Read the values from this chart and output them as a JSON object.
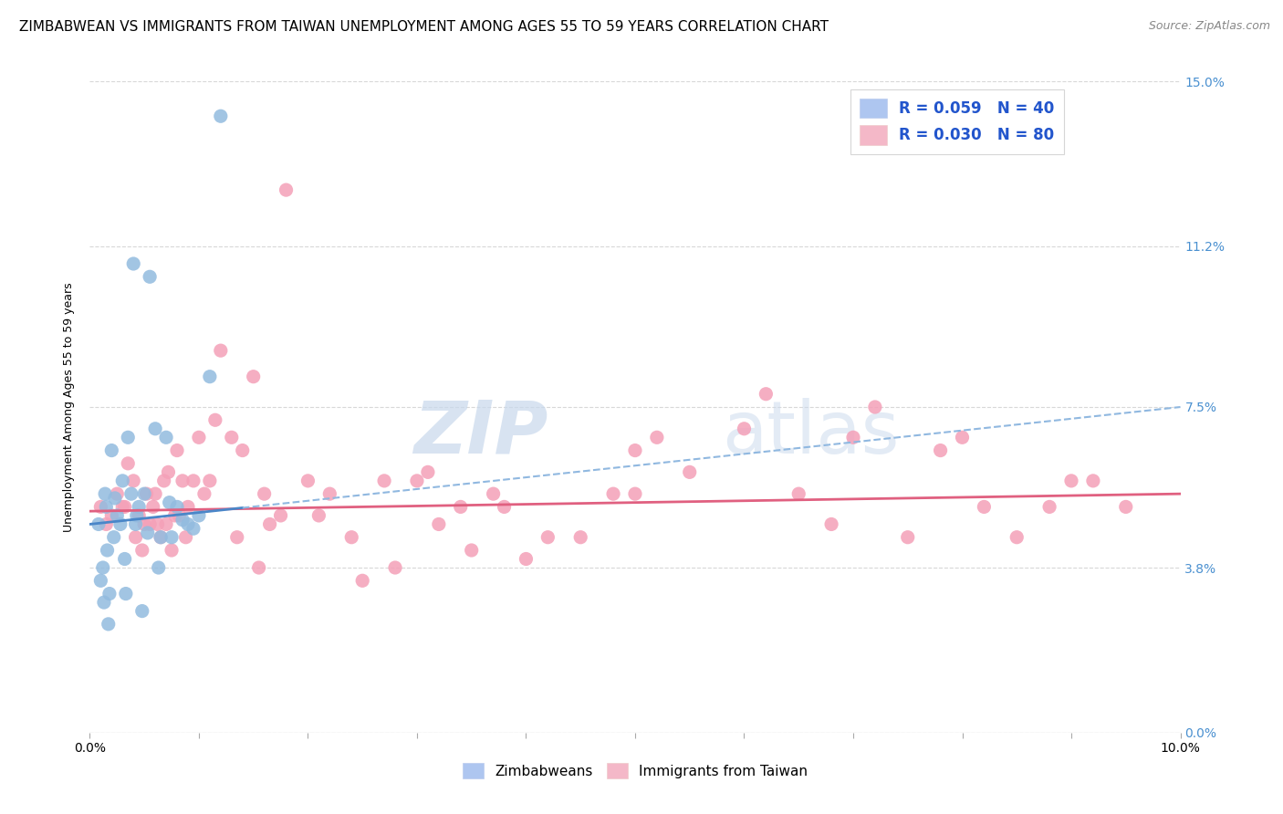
{
  "title": "ZIMBABWEAN VS IMMIGRANTS FROM TAIWAN UNEMPLOYMENT AMONG AGES 55 TO 59 YEARS CORRELATION CHART",
  "source": "Source: ZipAtlas.com",
  "ylabel": "Unemployment Among Ages 55 to 59 years",
  "ytick_labels": [
    "0.0%",
    "3.8%",
    "7.5%",
    "11.2%",
    "15.0%"
  ],
  "ytick_values": [
    0.0,
    3.8,
    7.5,
    11.2,
    15.0
  ],
  "xlim": [
    0.0,
    10.0
  ],
  "ylim": [
    0.0,
    15.0
  ],
  "legend_entries": [
    {
      "label_r": "R = 0.059",
      "label_n": "N = 40",
      "color": "#aec6f0"
    },
    {
      "label_r": "R = 0.030",
      "label_n": "N = 80",
      "color": "#f4b8c8"
    }
  ],
  "legend_labels_bottom": [
    "Zimbabweans",
    "Immigrants from Taiwan"
  ],
  "blue_color": "#92bbdf",
  "pink_color": "#f4a0b8",
  "blue_line_color": "#4a86c8",
  "blue_line_dash_color": "#90b8e0",
  "pink_line_color": "#e06080",
  "watermark_zip": "ZIP",
  "watermark_atlas": "atlas",
  "title_fontsize": 11,
  "source_fontsize": 9,
  "axis_label_fontsize": 9,
  "tick_fontsize": 10,
  "blue_scatter_x": [
    0.08,
    0.1,
    0.12,
    0.14,
    0.15,
    0.16,
    0.18,
    0.2,
    0.22,
    0.25,
    0.28,
    0.3,
    0.32,
    0.35,
    0.38,
    0.4,
    0.42,
    0.45,
    0.48,
    0.5,
    0.55,
    0.6,
    0.65,
    0.7,
    0.75,
    0.8,
    0.9,
    1.0,
    1.1,
    1.2,
    0.13,
    0.17,
    0.23,
    0.33,
    0.43,
    0.53,
    0.63,
    0.73,
    0.85,
    0.95
  ],
  "blue_scatter_y": [
    4.8,
    3.5,
    3.8,
    5.5,
    5.2,
    4.2,
    3.2,
    6.5,
    4.5,
    5.0,
    4.8,
    5.8,
    4.0,
    6.8,
    5.5,
    10.8,
    4.8,
    5.2,
    2.8,
    5.5,
    10.5,
    7.0,
    4.5,
    6.8,
    4.5,
    5.2,
    4.8,
    5.0,
    8.2,
    14.2,
    3.0,
    2.5,
    5.4,
    3.2,
    5.0,
    4.6,
    3.8,
    5.3,
    4.9,
    4.7
  ],
  "pink_scatter_x": [
    0.1,
    0.15,
    0.2,
    0.25,
    0.3,
    0.35,
    0.4,
    0.42,
    0.45,
    0.48,
    0.5,
    0.52,
    0.55,
    0.58,
    0.6,
    0.65,
    0.68,
    0.7,
    0.72,
    0.75,
    0.78,
    0.8,
    0.85,
    0.88,
    0.9,
    0.95,
    1.0,
    1.05,
    1.1,
    1.2,
    1.3,
    1.4,
    1.5,
    1.6,
    1.8,
    2.0,
    2.2,
    2.5,
    2.8,
    3.0,
    3.2,
    3.5,
    3.8,
    4.0,
    4.5,
    5.0,
    5.0,
    5.5,
    6.0,
    6.5,
    7.0,
    7.5,
    8.0,
    8.5,
    9.0,
    9.5,
    0.32,
    0.62,
    0.82,
    1.15,
    1.65,
    2.1,
    2.7,
    3.4,
    4.2,
    4.8,
    5.2,
    6.2,
    6.8,
    7.2,
    7.8,
    8.2,
    8.8,
    9.2,
    1.35,
    1.55,
    1.75,
    2.4,
    3.1,
    3.7
  ],
  "pink_scatter_y": [
    5.2,
    4.8,
    5.0,
    5.5,
    5.2,
    6.2,
    5.8,
    4.5,
    5.0,
    4.2,
    4.8,
    5.5,
    4.8,
    5.2,
    5.5,
    4.5,
    5.8,
    4.8,
    6.0,
    4.2,
    5.0,
    6.5,
    5.8,
    4.5,
    5.2,
    5.8,
    6.8,
    5.5,
    5.8,
    8.8,
    6.8,
    6.5,
    8.2,
    5.5,
    12.5,
    5.8,
    5.5,
    3.5,
    3.8,
    5.8,
    4.8,
    4.2,
    5.2,
    4.0,
    4.5,
    6.5,
    5.5,
    6.0,
    7.0,
    5.5,
    6.8,
    4.5,
    6.8,
    4.5,
    5.8,
    5.2,
    5.2,
    4.8,
    5.0,
    7.2,
    4.8,
    5.0,
    5.8,
    5.2,
    4.5,
    5.5,
    6.8,
    7.8,
    4.8,
    7.5,
    6.5,
    5.2,
    5.2,
    5.8,
    4.5,
    3.8,
    5.0,
    4.5,
    6.0,
    5.5
  ],
  "blue_trend_x": [
    0.0,
    10.0
  ],
  "blue_trend_y": [
    4.8,
    7.5
  ],
  "pink_trend_x": [
    0.0,
    10.0
  ],
  "pink_trend_y": [
    5.1,
    5.5
  ],
  "xtick_positions": [
    0.0,
    1.0,
    2.0,
    3.0,
    4.0,
    5.0,
    6.0,
    7.0,
    8.0,
    9.0,
    10.0
  ],
  "background_color": "#ffffff",
  "grid_color": "#d8d8d8",
  "legend_text_color": "#2255cc",
  "legend_r_color": "#333333",
  "right_tick_color": "#4a90d0"
}
